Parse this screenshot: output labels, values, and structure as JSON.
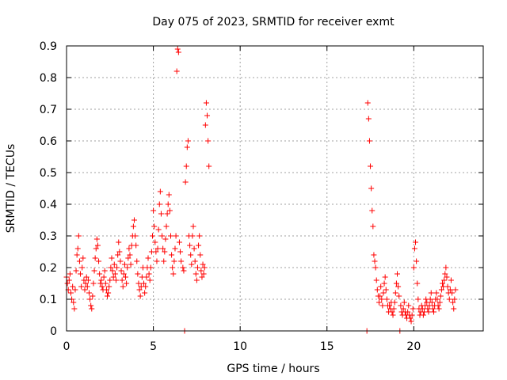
{
  "chart_data": {
    "type": "scatter",
    "title": "Day 075 of 2023, SRMTID for receiver exmt",
    "xlabel": "GPS time / hours",
    "ylabel": "SRMTID / TECUs",
    "xlim": [
      0,
      24
    ],
    "ylim": [
      0,
      0.9
    ],
    "xticks": [
      0,
      5,
      10,
      15,
      20
    ],
    "xtick_labels": [
      "0",
      "5",
      "10",
      "15",
      "20"
    ],
    "yticks": [
      0,
      0.1,
      0.2,
      0.3,
      0.4,
      0.5,
      0.6,
      0.7,
      0.8,
      0.9
    ],
    "ytick_labels": [
      "0",
      "0.1",
      "0.2",
      "0.3",
      "0.4",
      "0.5",
      "0.6",
      "0.7",
      "0.8",
      "0.9"
    ],
    "grid": true,
    "marker": "+",
    "color": "#ff0000",
    "series": [
      {
        "name": "SRMTID",
        "points": [
          [
            0.0,
            0.17
          ],
          [
            0.05,
            0.15
          ],
          [
            0.1,
            0.13
          ],
          [
            0.15,
            0.16
          ],
          [
            0.2,
            0.18
          ],
          [
            0.25,
            0.12
          ],
          [
            0.3,
            0.1
          ],
          [
            0.35,
            0.14
          ],
          [
            0.4,
            0.09
          ],
          [
            0.45,
            0.07
          ],
          [
            0.5,
            0.13
          ],
          [
            0.55,
            0.19
          ],
          [
            0.6,
            0.24
          ],
          [
            0.65,
            0.26
          ],
          [
            0.7,
            0.3
          ],
          [
            0.75,
            0.22
          ],
          [
            0.8,
            0.18
          ],
          [
            0.85,
            0.14
          ],
          [
            0.9,
            0.2
          ],
          [
            0.95,
            0.23
          ],
          [
            1.0,
            0.16
          ],
          [
            1.05,
            0.13
          ],
          [
            1.1,
            0.15
          ],
          [
            1.15,
            0.17
          ],
          [
            1.2,
            0.14
          ],
          [
            1.25,
            0.16
          ],
          [
            1.3,
            0.12
          ],
          [
            1.35,
            0.1
          ],
          [
            1.4,
            0.08
          ],
          [
            1.45,
            0.07
          ],
          [
            1.5,
            0.11
          ],
          [
            1.55,
            0.15
          ],
          [
            1.6,
            0.19
          ],
          [
            1.65,
            0.23
          ],
          [
            1.7,
            0.26
          ],
          [
            1.75,
            0.29
          ],
          [
            1.8,
            0.27
          ],
          [
            1.85,
            0.22
          ],
          [
            1.9,
            0.18
          ],
          [
            1.95,
            0.15
          ],
          [
            2.0,
            0.16
          ],
          [
            2.05,
            0.14
          ],
          [
            2.1,
            0.13
          ],
          [
            2.15,
            0.17
          ],
          [
            2.2,
            0.19
          ],
          [
            2.25,
            0.15
          ],
          [
            2.3,
            0.13
          ],
          [
            2.35,
            0.11
          ],
          [
            2.4,
            0.12
          ],
          [
            2.45,
            0.14
          ],
          [
            2.5,
            0.16
          ],
          [
            2.55,
            0.2
          ],
          [
            2.6,
            0.23
          ],
          [
            2.65,
            0.19
          ],
          [
            2.7,
            0.17
          ],
          [
            2.75,
            0.21
          ],
          [
            2.8,
            0.18
          ],
          [
            2.85,
            0.16
          ],
          [
            2.9,
            0.2
          ],
          [
            2.95,
            0.24
          ],
          [
            3.0,
            0.28
          ],
          [
            3.05,
            0.25
          ],
          [
            3.1,
            0.22
          ],
          [
            3.15,
            0.19
          ],
          [
            3.2,
            0.16
          ],
          [
            3.25,
            0.14
          ],
          [
            3.3,
            0.18
          ],
          [
            3.35,
            0.21
          ],
          [
            3.4,
            0.17
          ],
          [
            3.45,
            0.15
          ],
          [
            3.5,
            0.2
          ],
          [
            3.55,
            0.23
          ],
          [
            3.6,
            0.26
          ],
          [
            3.65,
            0.24
          ],
          [
            3.7,
            0.21
          ],
          [
            3.75,
            0.27
          ],
          [
            3.8,
            0.3
          ],
          [
            3.85,
            0.33
          ],
          [
            3.9,
            0.35
          ],
          [
            3.95,
            0.3
          ],
          [
            4.0,
            0.27
          ],
          [
            4.05,
            0.22
          ],
          [
            4.1,
            0.18
          ],
          [
            4.15,
            0.15
          ],
          [
            4.2,
            0.13
          ],
          [
            4.25,
            0.11
          ],
          [
            4.3,
            0.14
          ],
          [
            4.35,
            0.17
          ],
          [
            4.4,
            0.2
          ],
          [
            4.45,
            0.15
          ],
          [
            4.5,
            0.12
          ],
          [
            4.55,
            0.14
          ],
          [
            4.6,
            0.17
          ],
          [
            4.65,
            0.2
          ],
          [
            4.7,
            0.23
          ],
          [
            4.75,
            0.18
          ],
          [
            4.8,
            0.16
          ],
          [
            4.85,
            0.2
          ],
          [
            4.9,
            0.25
          ],
          [
            4.95,
            0.3
          ],
          [
            5.0,
            0.38
          ],
          [
            5.05,
            0.33
          ],
          [
            5.1,
            0.28
          ],
          [
            5.15,
            0.25
          ],
          [
            5.2,
            0.22
          ],
          [
            5.25,
            0.26
          ],
          [
            5.3,
            0.32
          ],
          [
            5.35,
            0.4
          ],
          [
            5.4,
            0.44
          ],
          [
            5.45,
            0.37
          ],
          [
            5.5,
            0.3
          ],
          [
            5.55,
            0.26
          ],
          [
            5.6,
            0.22
          ],
          [
            5.65,
            0.25
          ],
          [
            5.7,
            0.29
          ],
          [
            5.75,
            0.33
          ],
          [
            5.8,
            0.37
          ],
          [
            5.85,
            0.4
          ],
          [
            5.9,
            0.43
          ],
          [
            5.95,
            0.38
          ],
          [
            6.0,
            0.3
          ],
          [
            6.05,
            0.24
          ],
          [
            6.1,
            0.2
          ],
          [
            6.15,
            0.18
          ],
          [
            6.2,
            0.22
          ],
          [
            6.25,
            0.26
          ],
          [
            6.3,
            0.3
          ],
          [
            6.35,
            0.82
          ],
          [
            6.4,
            0.89
          ],
          [
            6.45,
            0.88
          ],
          [
            6.5,
            0.28
          ],
          [
            6.55,
            0.25
          ],
          [
            6.6,
            0.22
          ],
          [
            6.7,
            0.2
          ],
          [
            6.75,
            0.19
          ],
          [
            6.8,
            0.0
          ],
          [
            6.85,
            0.47
          ],
          [
            6.9,
            0.52
          ],
          [
            6.95,
            0.58
          ],
          [
            7.0,
            0.6
          ],
          [
            7.05,
            0.3
          ],
          [
            7.1,
            0.27
          ],
          [
            7.15,
            0.24
          ],
          [
            7.2,
            0.21
          ],
          [
            7.25,
            0.3
          ],
          [
            7.3,
            0.33
          ],
          [
            7.35,
            0.26
          ],
          [
            7.4,
            0.22
          ],
          [
            7.45,
            0.18
          ],
          [
            7.5,
            0.16
          ],
          [
            7.55,
            0.2
          ],
          [
            7.6,
            0.27
          ],
          [
            7.65,
            0.3
          ],
          [
            7.7,
            0.24
          ],
          [
            7.75,
            0.19
          ],
          [
            7.8,
            0.17
          ],
          [
            7.85,
            0.21
          ],
          [
            7.9,
            0.18
          ],
          [
            7.95,
            0.2
          ],
          [
            8.0,
            0.65
          ],
          [
            8.05,
            0.72
          ],
          [
            8.1,
            0.68
          ],
          [
            8.15,
            0.6
          ],
          [
            8.2,
            0.52
          ],
          [
            17.3,
            0.0
          ],
          [
            17.35,
            0.72
          ],
          [
            17.4,
            0.67
          ],
          [
            17.45,
            0.6
          ],
          [
            17.5,
            0.52
          ],
          [
            17.55,
            0.45
          ],
          [
            17.6,
            0.38
          ],
          [
            17.65,
            0.33
          ],
          [
            17.7,
            0.24
          ],
          [
            17.75,
            0.22
          ],
          [
            17.8,
            0.2
          ],
          [
            17.85,
            0.16
          ],
          [
            17.9,
            0.13
          ],
          [
            17.95,
            0.11
          ],
          [
            18.0,
            0.09
          ],
          [
            18.05,
            0.11
          ],
          [
            18.1,
            0.14
          ],
          [
            18.15,
            0.1
          ],
          [
            18.2,
            0.08
          ],
          [
            18.25,
            0.12
          ],
          [
            18.3,
            0.15
          ],
          [
            18.35,
            0.17
          ],
          [
            18.4,
            0.13
          ],
          [
            18.45,
            0.1
          ],
          [
            18.5,
            0.08
          ],
          [
            18.55,
            0.06
          ],
          [
            18.6,
            0.08
          ],
          [
            18.65,
            0.07
          ],
          [
            18.7,
            0.09
          ],
          [
            18.75,
            0.06
          ],
          [
            18.8,
            0.05
          ],
          [
            18.85,
            0.07
          ],
          [
            18.9,
            0.09
          ],
          [
            18.95,
            0.12
          ],
          [
            19.0,
            0.15
          ],
          [
            19.05,
            0.18
          ],
          [
            19.1,
            0.14
          ],
          [
            19.15,
            0.11
          ],
          [
            19.2,
            0.0
          ],
          [
            19.25,
            0.08
          ],
          [
            19.3,
            0.06
          ],
          [
            19.35,
            0.05
          ],
          [
            19.4,
            0.07
          ],
          [
            19.45,
            0.09
          ],
          [
            19.5,
            0.06
          ],
          [
            19.55,
            0.05
          ],
          [
            19.6,
            0.04
          ],
          [
            19.65,
            0.06
          ],
          [
            19.7,
            0.08
          ],
          [
            19.75,
            0.05
          ],
          [
            19.8,
            0.04
          ],
          [
            19.85,
            0.03
          ],
          [
            19.9,
            0.05
          ],
          [
            19.95,
            0.07
          ],
          [
            20.0,
            0.2
          ],
          [
            20.05,
            0.26
          ],
          [
            20.1,
            0.28
          ],
          [
            20.15,
            0.22
          ],
          [
            20.2,
            0.15
          ],
          [
            20.25,
            0.1
          ],
          [
            20.3,
            0.07
          ],
          [
            20.35,
            0.05
          ],
          [
            20.4,
            0.06
          ],
          [
            20.45,
            0.08
          ],
          [
            20.5,
            0.07
          ],
          [
            20.55,
            0.05
          ],
          [
            20.6,
            0.06
          ],
          [
            20.65,
            0.08
          ],
          [
            20.7,
            0.1
          ],
          [
            20.75,
            0.09
          ],
          [
            20.8,
            0.07
          ],
          [
            20.85,
            0.06
          ],
          [
            20.9,
            0.08
          ],
          [
            20.95,
            0.1
          ],
          [
            21.0,
            0.12
          ],
          [
            21.05,
            0.09
          ],
          [
            21.1,
            0.07
          ],
          [
            21.15,
            0.06
          ],
          [
            21.2,
            0.08
          ],
          [
            21.25,
            0.1
          ],
          [
            21.3,
            0.12
          ],
          [
            21.35,
            0.1
          ],
          [
            21.4,
            0.08
          ],
          [
            21.45,
            0.07
          ],
          [
            21.5,
            0.09
          ],
          [
            21.55,
            0.11
          ],
          [
            21.6,
            0.13
          ],
          [
            21.65,
            0.15
          ],
          [
            21.7,
            0.14
          ],
          [
            21.75,
            0.16
          ],
          [
            21.8,
            0.18
          ],
          [
            21.85,
            0.2
          ],
          [
            21.9,
            0.17
          ],
          [
            21.95,
            0.14
          ],
          [
            22.0,
            0.12
          ],
          [
            22.05,
            0.1
          ],
          [
            22.1,
            0.13
          ],
          [
            22.15,
            0.16
          ],
          [
            22.2,
            0.12
          ],
          [
            22.25,
            0.09
          ],
          [
            22.3,
            0.07
          ],
          [
            22.35,
            0.1
          ],
          [
            22.4,
            0.13
          ]
        ]
      }
    ]
  }
}
